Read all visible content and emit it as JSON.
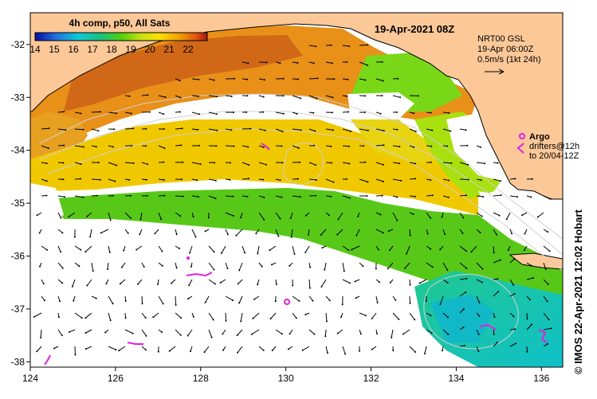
{
  "map": {
    "title": "19-Apr-2021 08Z",
    "colorbar": {
      "label": "4h comp, p50, All Sats",
      "ticks": [
        "14",
        "15",
        "16",
        "17",
        "18",
        "19",
        "20",
        "21",
        "22"
      ],
      "min": 14,
      "max": 23
    },
    "current_legend": {
      "line1": "NRT00 GSL",
      "line2": "19-Apr 06:00Z",
      "line3": "0.5m/s (1kt 24h)"
    },
    "argo_legend": {
      "label": "Argo",
      "line2": "drifters@12h",
      "line3": "to 20/04-12Z"
    },
    "axes": {
      "lon_ticks": [
        "124",
        "126",
        "128",
        "130",
        "132",
        "134",
        "136"
      ],
      "lat_ticks": [
        "-32",
        "-33",
        "-34",
        "-35",
        "-36",
        "-37",
        "-38"
      ],
      "lon_range": [
        124,
        136.5
      ],
      "lat_range": [
        -31.4,
        -38.1
      ]
    },
    "credit": "© IMOS 22-Apr-2021 12:02 Hobart",
    "colors": {
      "land": "#fcc898",
      "no_data": "#ffffff",
      "argo": "#e020e0"
    }
  }
}
